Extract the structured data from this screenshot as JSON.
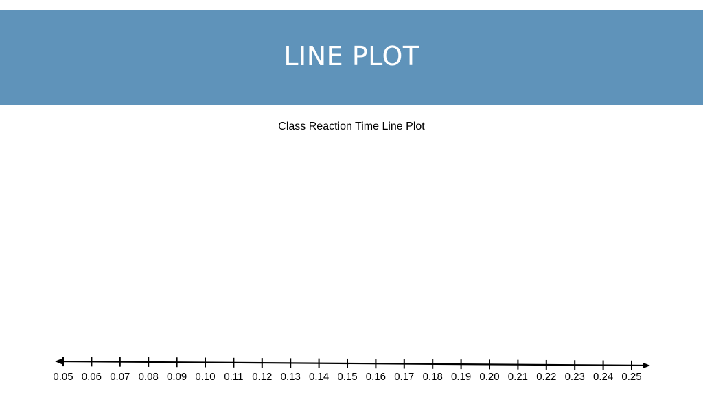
{
  "slide": {
    "title": "LINE PLOT",
    "banner_color": "#5f93ba"
  },
  "chart_data": {
    "type": "scatter",
    "title": "Class Reaction Time Line Plot",
    "xlabel": "",
    "ylabel": "",
    "xlim": [
      0.05,
      0.25
    ],
    "x_ticks": [
      "0.05",
      "0.06",
      "0.07",
      "0.08",
      "0.09",
      "0.10",
      "0.11",
      "0.12",
      "0.13",
      "0.14",
      "0.15",
      "0.16",
      "0.17",
      "0.18",
      "0.19",
      "0.20",
      "0.21",
      "0.22",
      "0.23",
      "0.24",
      "0.25"
    ],
    "x": [],
    "y": [],
    "arrows_both_ends": true,
    "grid": false
  }
}
